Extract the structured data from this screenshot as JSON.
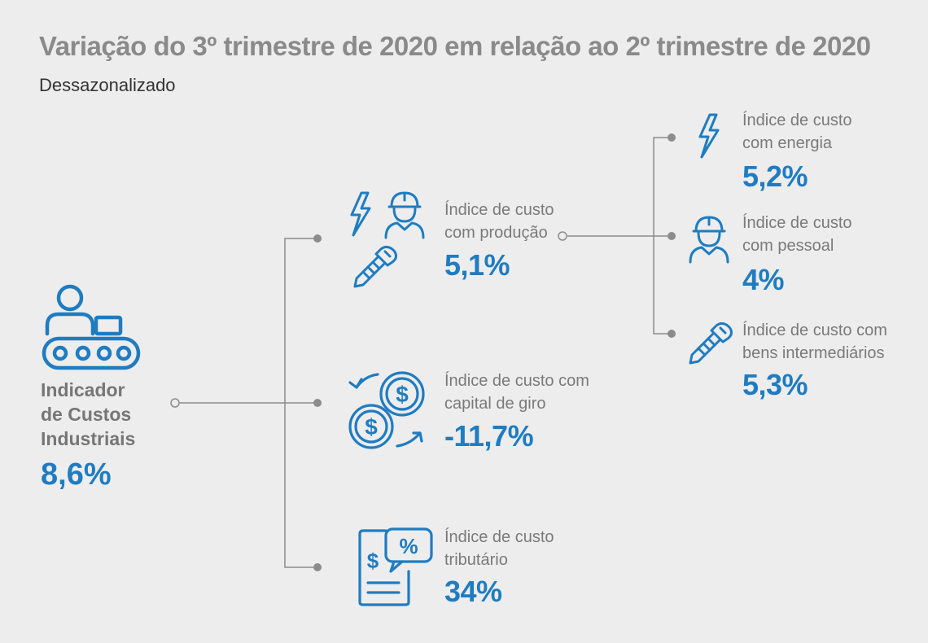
{
  "header": {
    "title": "Variação do 3º trimestre de 2020 em relação ao 2º trimestre de 2020",
    "subtitle": "Dessazonalizado"
  },
  "colors": {
    "accent": "#1f7cc1",
    "label": "#7a7a7a",
    "line": "#8c8c8c"
  },
  "root": {
    "label_lines": [
      "Indicador",
      "de Custos",
      "Industriais"
    ],
    "value": "8,6%",
    "icon": "factory-conveyor-icon"
  },
  "nodes": {
    "producao": {
      "label_lines": [
        "Índice de custo",
        "com produção"
      ],
      "value": "5,1%",
      "icons": [
        "lightning-icon",
        "worker-icon",
        "screw-icon"
      ]
    },
    "capital": {
      "label_lines": [
        "Índice de custo com",
        "capital de giro"
      ],
      "value": "-11,7%",
      "icon": "money-cycle-icon"
    },
    "tributario": {
      "label_lines": [
        "Índice de custo",
        "tributário"
      ],
      "value": "34%",
      "icon": "tax-document-icon"
    },
    "energia": {
      "label_lines": [
        "Índice de custo",
        "com energia"
      ],
      "value": "5,2%",
      "icon": "lightning-icon"
    },
    "pessoal": {
      "label_lines": [
        "Índice de custo",
        "com pessoal"
      ],
      "value": "4%",
      "icon": "worker-icon"
    },
    "intermediarios": {
      "label_lines": [
        "Índice de custo com",
        "bens intermediários"
      ],
      "value": "5,3%",
      "icon": "screw-icon"
    }
  }
}
